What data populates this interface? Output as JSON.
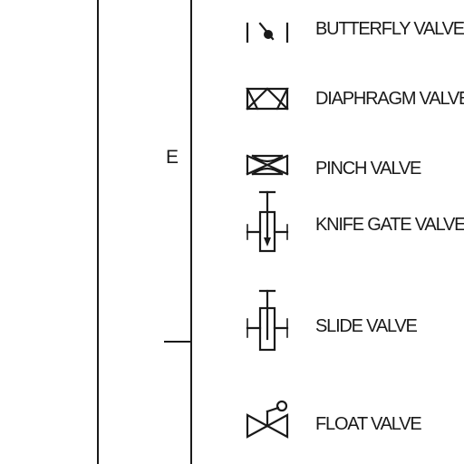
{
  "title_block": {
    "zone_letter": "E"
  },
  "legend": {
    "items": [
      {
        "label": "BUTTERFLY VALVE",
        "icon": "butterfly-valve-icon"
      },
      {
        "label": "DIAPHRAGM VALVE",
        "icon": "diaphragm-valve-icon"
      },
      {
        "label": "PINCH VALVE",
        "icon": "pinch-valve-icon"
      },
      {
        "label": "KNIFE GATE VALVE",
        "icon": "knife-gate-valve-icon"
      },
      {
        "label": "SLIDE VALVE",
        "icon": "slide-valve-icon"
      },
      {
        "label": "FLOAT VALVE",
        "icon": "float-valve-icon"
      }
    ]
  },
  "colors": {
    "ink": "#1a1a1a",
    "paper": "#ffffff"
  }
}
